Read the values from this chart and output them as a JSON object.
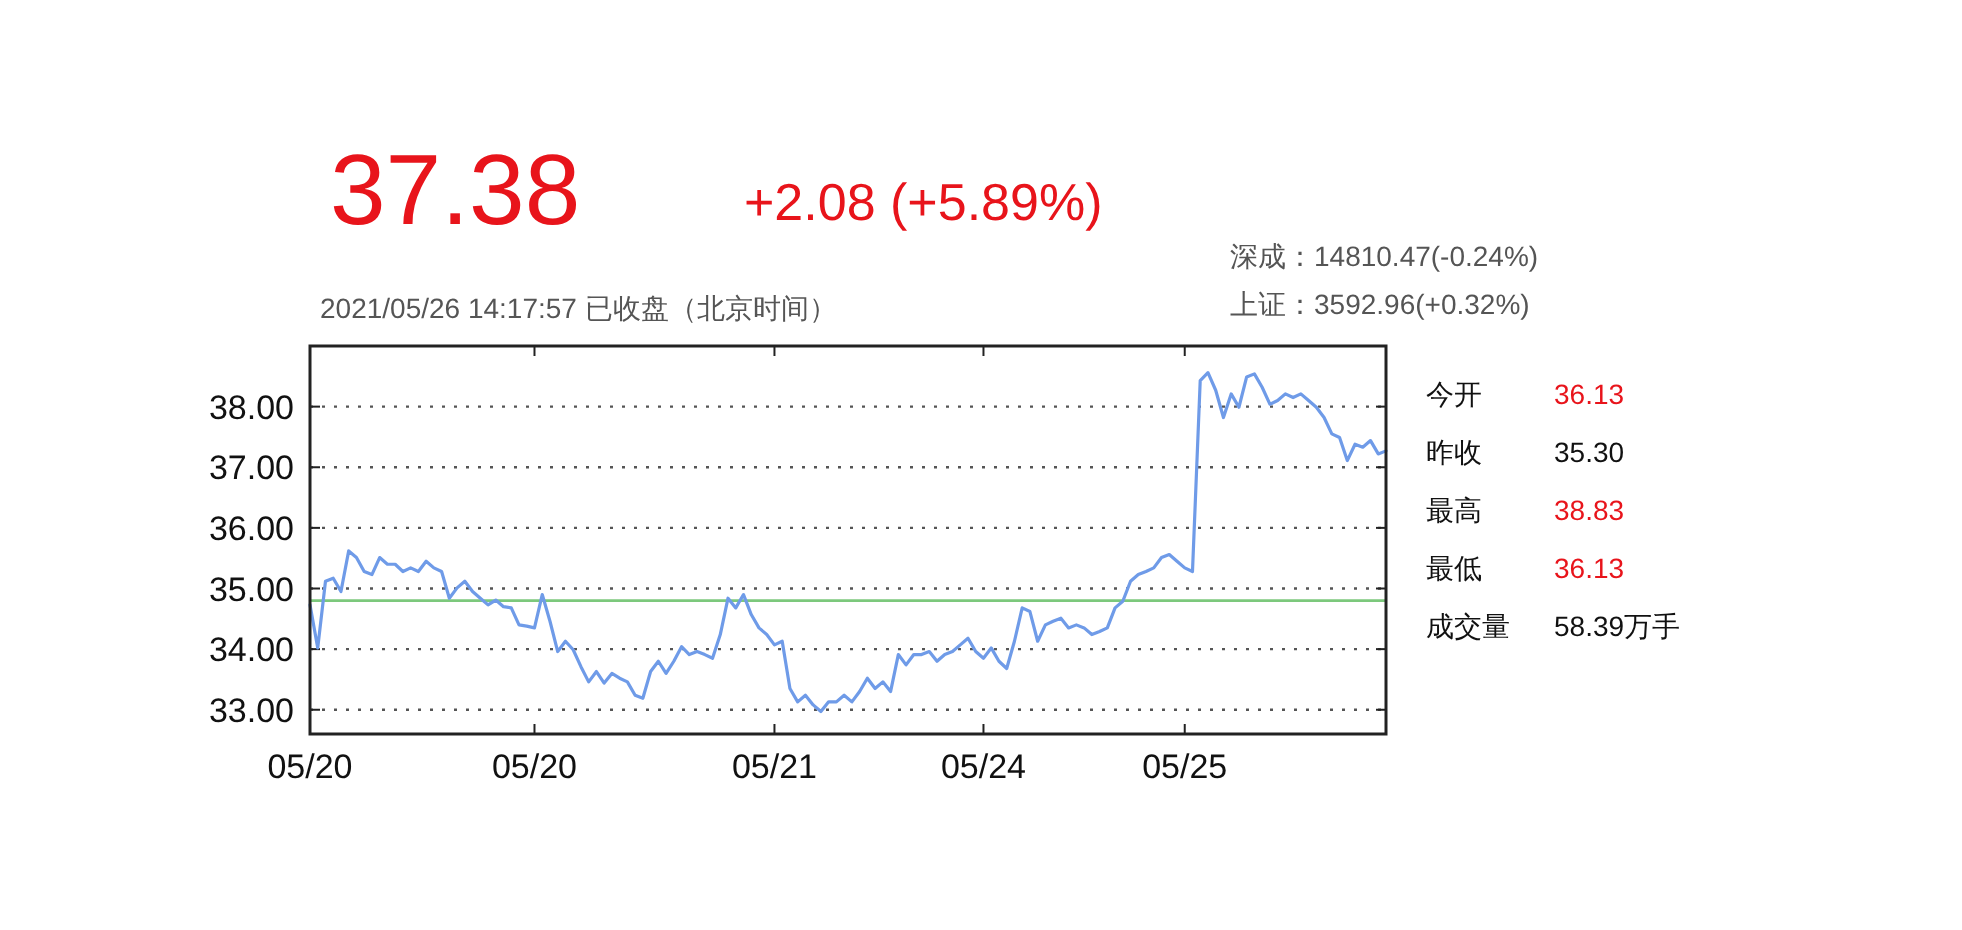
{
  "chart_data": {
    "type": "line",
    "title": "37.38",
    "subtitle": "+2.08 (+5.89%)",
    "annotations": [
      "2021/05/26 14:17:57 已收盘（北京时间）",
      "深成：14810.47(-0.24%)",
      "上证：3592.96(+0.32%)",
      "今开",
      "36.13",
      "昨收",
      "35.30",
      "最高",
      "38.83",
      "最低",
      "36.13",
      "成交量",
      "58.39万手"
    ],
    "categories": [
      "05/20",
      null,
      null,
      null,
      null,
      null,
      null,
      null,
      null,
      null,
      null,
      null,
      null,
      null,
      null,
      null,
      null,
      null,
      null,
      null,
      null,
      null,
      null,
      null,
      null,
      null,
      null,
      null,
      null,
      "05/20",
      null,
      null,
      null,
      null,
      null,
      null,
      null,
      null,
      null,
      null,
      null,
      null,
      null,
      null,
      null,
      null,
      null,
      null,
      null,
      null,
      null,
      null,
      null,
      null,
      null,
      null,
      null,
      null,
      null,
      null,
      "05/21",
      null,
      null,
      null,
      null,
      null,
      null,
      null,
      null,
      null,
      null,
      null,
      null,
      null,
      null,
      null,
      null,
      null,
      null,
      null,
      null,
      null,
      null,
      null,
      null,
      null,
      null,
      "05/24",
      null,
      null,
      null,
      null,
      null,
      null,
      null,
      null,
      null,
      null,
      null,
      null,
      null,
      null,
      null,
      null,
      null,
      null,
      null,
      null,
      null,
      null,
      null,
      null,
      null,
      "05/25",
      null,
      null,
      null,
      null,
      null,
      null,
      null,
      null,
      null,
      null,
      null,
      null,
      null,
      null,
      null,
      null,
      null,
      null,
      null,
      null,
      null,
      null,
      null,
      null,
      null,
      null
    ],
    "ylim": [
      32.6,
      39.0
    ],
    "yticks": [
      {
        "value": 33,
        "label": "33.00"
      },
      {
        "value": 34,
        "label": "34.00"
      },
      {
        "value": 35,
        "label": "35.00"
      },
      {
        "value": 36,
        "label": "36.00"
      },
      {
        "value": 37,
        "label": "37.00"
      },
      {
        "value": 38,
        "label": "38.00"
      }
    ],
    "grid": "y",
    "line_style": "solid",
    "ref_lines": [
      {
        "axis": "y",
        "value": 34.8,
        "color": "#7cc87c"
      }
    ],
    "series": [
      {
        "color": "#6f9be8",
        "values": [
          34.73,
          34.02,
          35.12,
          35.17,
          34.95,
          35.62,
          35.51,
          35.28,
          35.23,
          35.51,
          35.4,
          35.4,
          35.28,
          35.34,
          35.28,
          35.45,
          35.34,
          35.28,
          34.84,
          35.01,
          35.12,
          34.95,
          34.84,
          34.73,
          34.81,
          34.7,
          34.68,
          34.4,
          34.38,
          34.35,
          34.9,
          34.46,
          33.96,
          34.13,
          33.99,
          33.71,
          33.46,
          33.63,
          33.44,
          33.6,
          33.52,
          33.46,
          33.24,
          33.19,
          33.63,
          33.8,
          33.6,
          33.8,
          34.04,
          33.91,
          33.96,
          33.91,
          33.85,
          34.24,
          34.84,
          34.68,
          34.9,
          34.57,
          34.35,
          34.24,
          34.07,
          34.13,
          33.35,
          33.13,
          33.24,
          33.08,
          32.97,
          33.13,
          33.13,
          33.24,
          33.13,
          33.3,
          33.52,
          33.35,
          33.46,
          33.3,
          33.91,
          33.74,
          33.91,
          33.91,
          33.96,
          33.8,
          33.91,
          33.96,
          34.07,
          34.18,
          33.96,
          33.85,
          34.02,
          33.8,
          33.68,
          34.13,
          34.68,
          34.62,
          34.13,
          34.4,
          34.46,
          34.51,
          34.35,
          34.4,
          34.35,
          34.24,
          34.29,
          34.35,
          34.68,
          34.79,
          35.12,
          35.23,
          35.28,
          35.34,
          35.51,
          35.56,
          35.45,
          35.34,
          35.28,
          38.43,
          38.56,
          38.27,
          37.82,
          38.21,
          37.99,
          38.49,
          38.54,
          38.32,
          38.04,
          38.1,
          38.21,
          38.15,
          38.21,
          38.1,
          37.99,
          37.82,
          37.55,
          37.49,
          37.11,
          37.38,
          37.33,
          37.44,
          37.22,
          37.27
        ]
      }
    ]
  }
}
